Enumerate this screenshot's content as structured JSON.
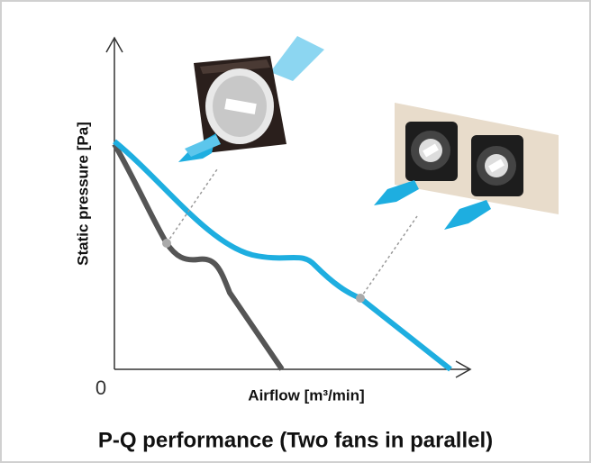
{
  "diagram": {
    "y_axis_label": "Static pressure [Pa]",
    "origin_label": "0",
    "x_axis_label": "Airflow [m³/min]",
    "caption": "P-Q performance (Two fans in parallel)"
  }
}
